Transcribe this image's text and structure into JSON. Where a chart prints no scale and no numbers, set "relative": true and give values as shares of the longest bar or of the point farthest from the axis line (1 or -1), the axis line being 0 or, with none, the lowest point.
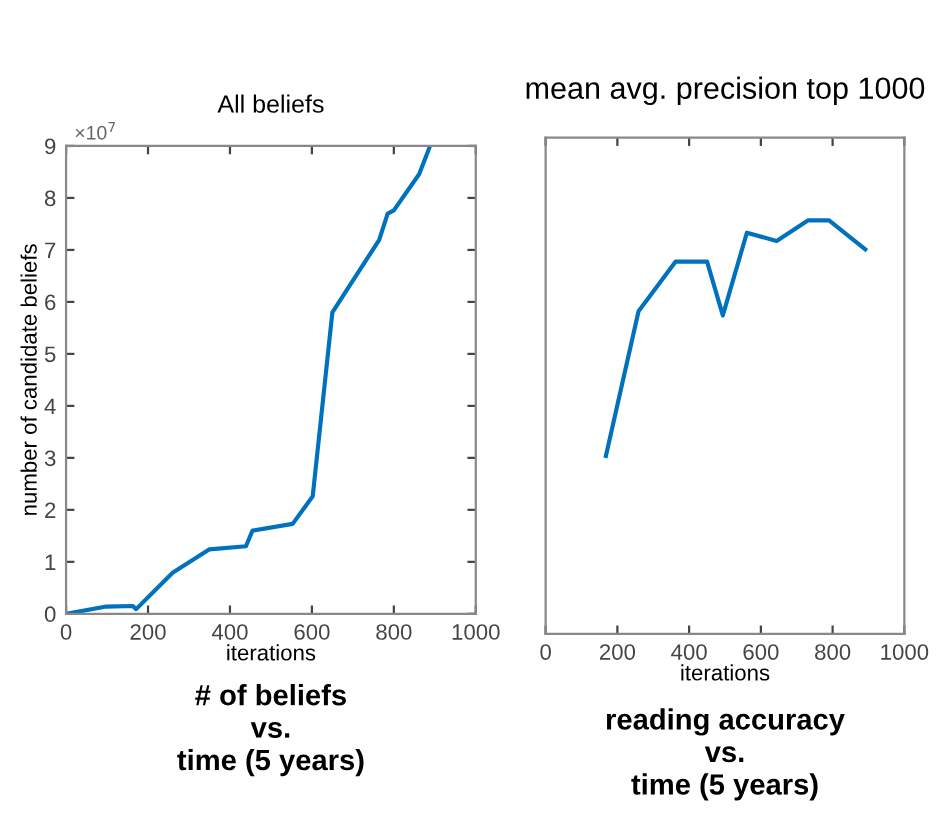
{
  "chart_data": [
    {
      "type": "line",
      "title": "All beliefs",
      "xlabel": "iterations",
      "ylabel": "number of candidate beliefs",
      "x": [
        0,
        98,
        163,
        171,
        260,
        350,
        439,
        455,
        553,
        602,
        650,
        764,
        785,
        800,
        862,
        886
      ],
      "series": [
        {
          "color": "#0072bd",
          "values": [
            0,
            0.14,
            0.15,
            0.09,
            0.79,
            1.24,
            1.3,
            1.6,
            1.73,
            2.26,
            5.8,
            7.19,
            7.7,
            7.76,
            8.46,
            8.95
          ]
        }
      ],
      "xlim": [
        0,
        1000
      ],
      "xticks": [
        0,
        200,
        400,
        600,
        800,
        1000
      ],
      "ylim": [
        0,
        9
      ],
      "yticks": [
        0,
        1,
        2,
        3,
        4,
        5,
        6,
        7,
        8,
        9
      ],
      "grid": false,
      "legend": false,
      "marker": "none",
      "line_style": "solid",
      "annotations": [
        "×10$^{7}$",
        "# of beliefs\nvs.\ntime (5 years)"
      ]
    },
    {
      "type": "line",
      "title": "mean avg. precision top 1000",
      "xlabel": "iterations",
      "x": [
        168,
        259,
        362,
        450,
        494,
        561,
        644,
        732,
        790,
        891
      ],
      "series": [
        {
          "color": "#0072bd",
          "values": [
            0.43,
            0.78,
            0.9,
            0.9,
            0.77,
            0.97,
            0.95,
            1,
            1,
            0.93
          ]
        }
      ],
      "relative": true,
      "xlim": [
        0,
        1000
      ],
      "xticks": [
        0,
        200,
        400,
        600,
        800,
        1000
      ],
      "grid": false,
      "legend": false,
      "marker": "none",
      "line_style": "solid",
      "annotations": [
        "reading accuracy\nvs.\ntime (5 years)"
      ]
    }
  ]
}
